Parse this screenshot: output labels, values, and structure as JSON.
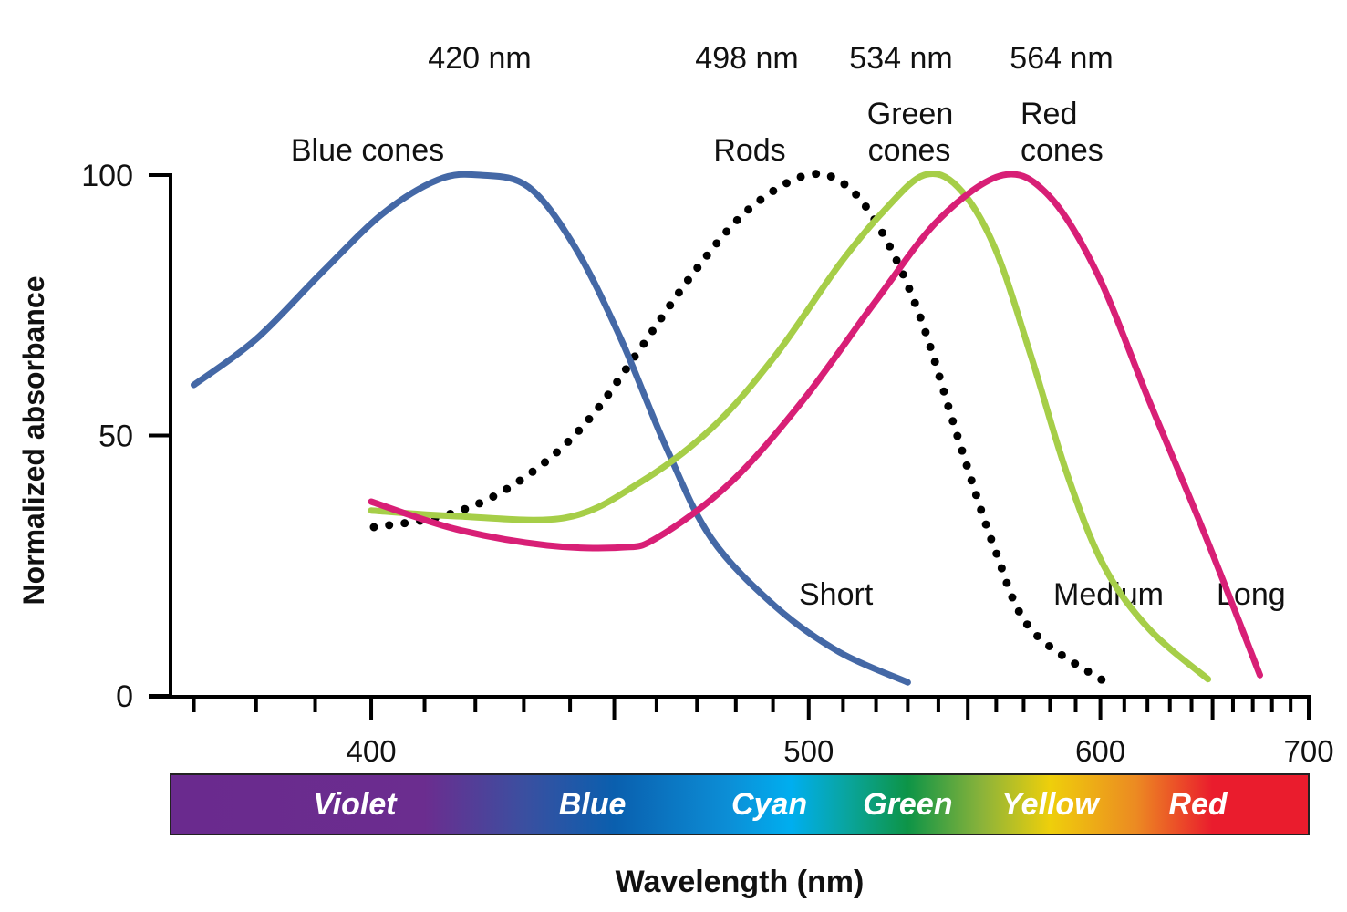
{
  "chart_data": {
    "type": "line",
    "title": "",
    "xlabel": "Wavelength (nm)",
    "ylabel": "Normalized absorbance",
    "x_scale": "reciprocal (frequency-proportional)",
    "xlim": [
      365,
      700
    ],
    "ylim": [
      0,
      100
    ],
    "x_ticks": [
      400,
      500,
      600,
      700
    ],
    "x_tick_labels": [
      "400",
      "500",
      "600",
      "700"
    ],
    "x_minor_ticks": [
      370,
      380,
      390,
      400,
      410,
      420,
      430,
      440,
      450,
      460,
      470,
      480,
      490,
      500,
      510,
      520,
      530,
      540,
      550,
      560,
      570,
      580,
      590,
      600,
      610,
      620,
      630,
      640,
      650,
      660,
      670,
      680,
      690,
      700
    ],
    "x_major_ticks": [
      400,
      450,
      500,
      550,
      600,
      650,
      700
    ],
    "y_ticks": [
      0,
      50,
      100
    ],
    "y_tick_labels": [
      "0",
      "50",
      "100"
    ],
    "grid": false,
    "legend": "none (curves labeled directly)",
    "series": [
      {
        "name": "Blue cones",
        "peak_label": "420 nm",
        "end_label": "Short",
        "color": "#4468a6",
        "style": "solid",
        "x": [
          370,
          380,
          391,
          402,
          412.6,
          421,
          431,
          441,
          451.4,
          462.3,
          473.6,
          490.6,
          508.9,
          530
        ],
        "y": [
          59.7,
          68.5,
          81.1,
          92.5,
          99.1,
          100,
          97.7,
          86.3,
          68.8,
          47.8,
          30.3,
          17.2,
          8.4,
          2.6
        ]
      },
      {
        "name": "Rods",
        "peak_label": "498 nm",
        "end_label": "",
        "color": "#000000",
        "style": "dotted",
        "x": [
          400.5,
          412.6,
          423.5,
          435,
          445,
          455.7,
          469,
          483.2,
          499.5,
          511.5,
          522.7,
          534.3,
          546.6,
          559.3,
          572.7,
          603.2
        ],
        "y": [
          32.4,
          34.3,
          38.2,
          45.2,
          53.9,
          66.2,
          81.1,
          93.3,
          100,
          97.7,
          88.1,
          72.3,
          49.6,
          28.5,
          12.8,
          2.3
        ]
      },
      {
        "name": "Green cones",
        "peak_label": "534 nm",
        "end_label": "Medium",
        "color": "#a6ce48",
        "style": "solid",
        "x": [
          400,
          416.2,
          439,
          455.7,
          473.6,
          490.6,
          508.9,
          522.7,
          535.3,
          546.6,
          559.3,
          572.7,
          586.6,
          601.4,
          620.8,
          647.8
        ],
        "y": [
          35.6,
          34.5,
          34.2,
          40.8,
          51.3,
          65.3,
          82.8,
          93.3,
          100,
          97.7,
          86.3,
          65.3,
          42.6,
          25,
          12.8,
          3.2
        ]
      },
      {
        "name": "Red cones",
        "peak_label": "564 nm",
        "end_label": "Long",
        "color": "#d81f76",
        "style": "solid",
        "x": [
          400,
          416.2,
          435,
          451.4,
          460,
          478.4,
          498.2,
          519.9,
          540.4,
          562.5,
          579.6,
          598.7,
          620.8,
          645.3,
          673.7
        ],
        "y": [
          37.3,
          32,
          28.9,
          28.5,
          30.3,
          40.8,
          56.6,
          75.8,
          91.6,
          100,
          96,
          81.1,
          56.6,
          32,
          4
        ]
      }
    ],
    "annotations": {
      "peaks": [
        "420 nm",
        "498 nm",
        "534 nm",
        "564 nm"
      ],
      "curve_names": {
        "blue": "Blue cones",
        "rods": "Rods",
        "green_line1": "Green",
        "green_line2": "cones",
        "red_line1": "Red",
        "red_line2": "cones"
      },
      "cone_types": [
        "Short",
        "Medium",
        "Long"
      ]
    },
    "spectrum_bar": {
      "labels": [
        "Violet",
        "Blue",
        "Cyan",
        "Green",
        "Yellow",
        "Red"
      ],
      "label_wavelengths": [
        397,
        445,
        489,
        530,
        580,
        643
      ],
      "gradient_stops": [
        {
          "nm": 365,
          "color": "#6a2a8e"
        },
        {
          "nm": 410,
          "color": "#6b2d8f"
        },
        {
          "nm": 430,
          "color": "#3b4fa0"
        },
        {
          "nm": 450,
          "color": "#0a5fae"
        },
        {
          "nm": 478,
          "color": "#0c8ed6"
        },
        {
          "nm": 495,
          "color": "#00aeef"
        },
        {
          "nm": 512,
          "color": "#0aa49a"
        },
        {
          "nm": 530,
          "color": "#0d9447"
        },
        {
          "nm": 555,
          "color": "#8bb33a"
        },
        {
          "nm": 580,
          "color": "#eecf0b"
        },
        {
          "nm": 615,
          "color": "#ec8a22"
        },
        {
          "nm": 650,
          "color": "#ea1c2d"
        },
        {
          "nm": 700,
          "color": "#ea1c2d"
        }
      ]
    }
  }
}
